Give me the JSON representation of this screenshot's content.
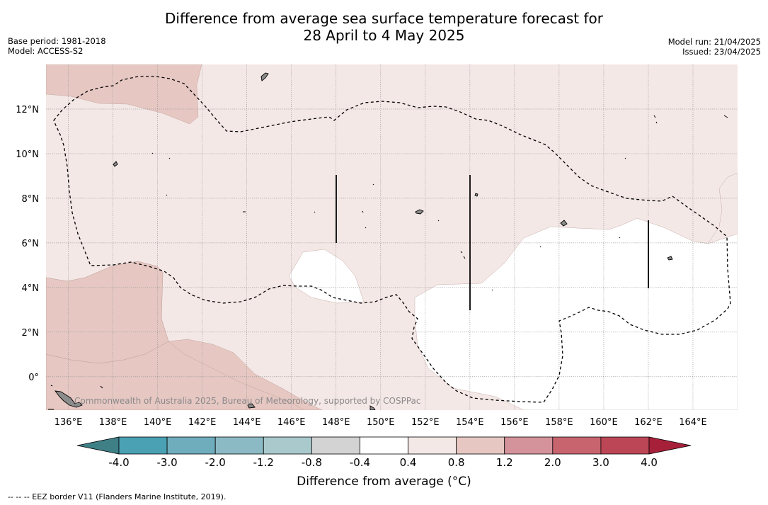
{
  "header": {
    "title_line1": "Difference from average sea surface temperature forecast for",
    "title_line2": "28 April to 4 May 2025",
    "base_period": "Base period: 1981-2018",
    "model": "Model: ACCESS-S2",
    "model_run": "Model run: 21/04/2025",
    "issued": "Issued: 23/04/2025"
  },
  "map": {
    "lon_ticks": [
      "136°E",
      "138°E",
      "140°E",
      "142°E",
      "144°E",
      "146°E",
      "148°E",
      "150°E",
      "152°E",
      "154°E",
      "156°E",
      "158°E",
      "160°E",
      "162°E",
      "164°E"
    ],
    "lat_ticks": [
      "12°N",
      "10°N",
      "8°N",
      "6°N",
      "4°N",
      "2°N",
      "0°"
    ],
    "lon_range": [
      135,
      166
    ],
    "lat_range": [
      -1.5,
      14
    ],
    "eez_line_style": "dashed",
    "credit": "Commonwealth of Australia 2025, Bureau of Meteorology, supported by COSPPac",
    "colors": {
      "anomaly_0_4_to_0_8": "#f4e8e6",
      "anomaly_0_8_to_1_2": "#e6c7c2",
      "anomaly_neg0_4_to_0_4": "#ffffff",
      "land": "#8c8c8c"
    }
  },
  "colorbar": {
    "boundaries": [
      "-4.0",
      "-3.0",
      "-2.0",
      "-1.2",
      "-0.8",
      "-0.4",
      "0.4",
      "0.8",
      "1.2",
      "2.0",
      "3.0",
      "4.0"
    ],
    "colors": [
      "#3f7f86",
      "#4aa1b3",
      "#6fadbd",
      "#8cbac4",
      "#a9c9cd",
      "#d3d3d3",
      "#ffffff",
      "#f4e8e6",
      "#e6c7c2",
      "#d4929a",
      "#c7646e",
      "#bc4655",
      "#a7203a"
    ],
    "title": "Difference from average (°C)"
  },
  "footnote": "--  --  -- EEZ border V11 (Flanders Marine Institute, 2019)."
}
